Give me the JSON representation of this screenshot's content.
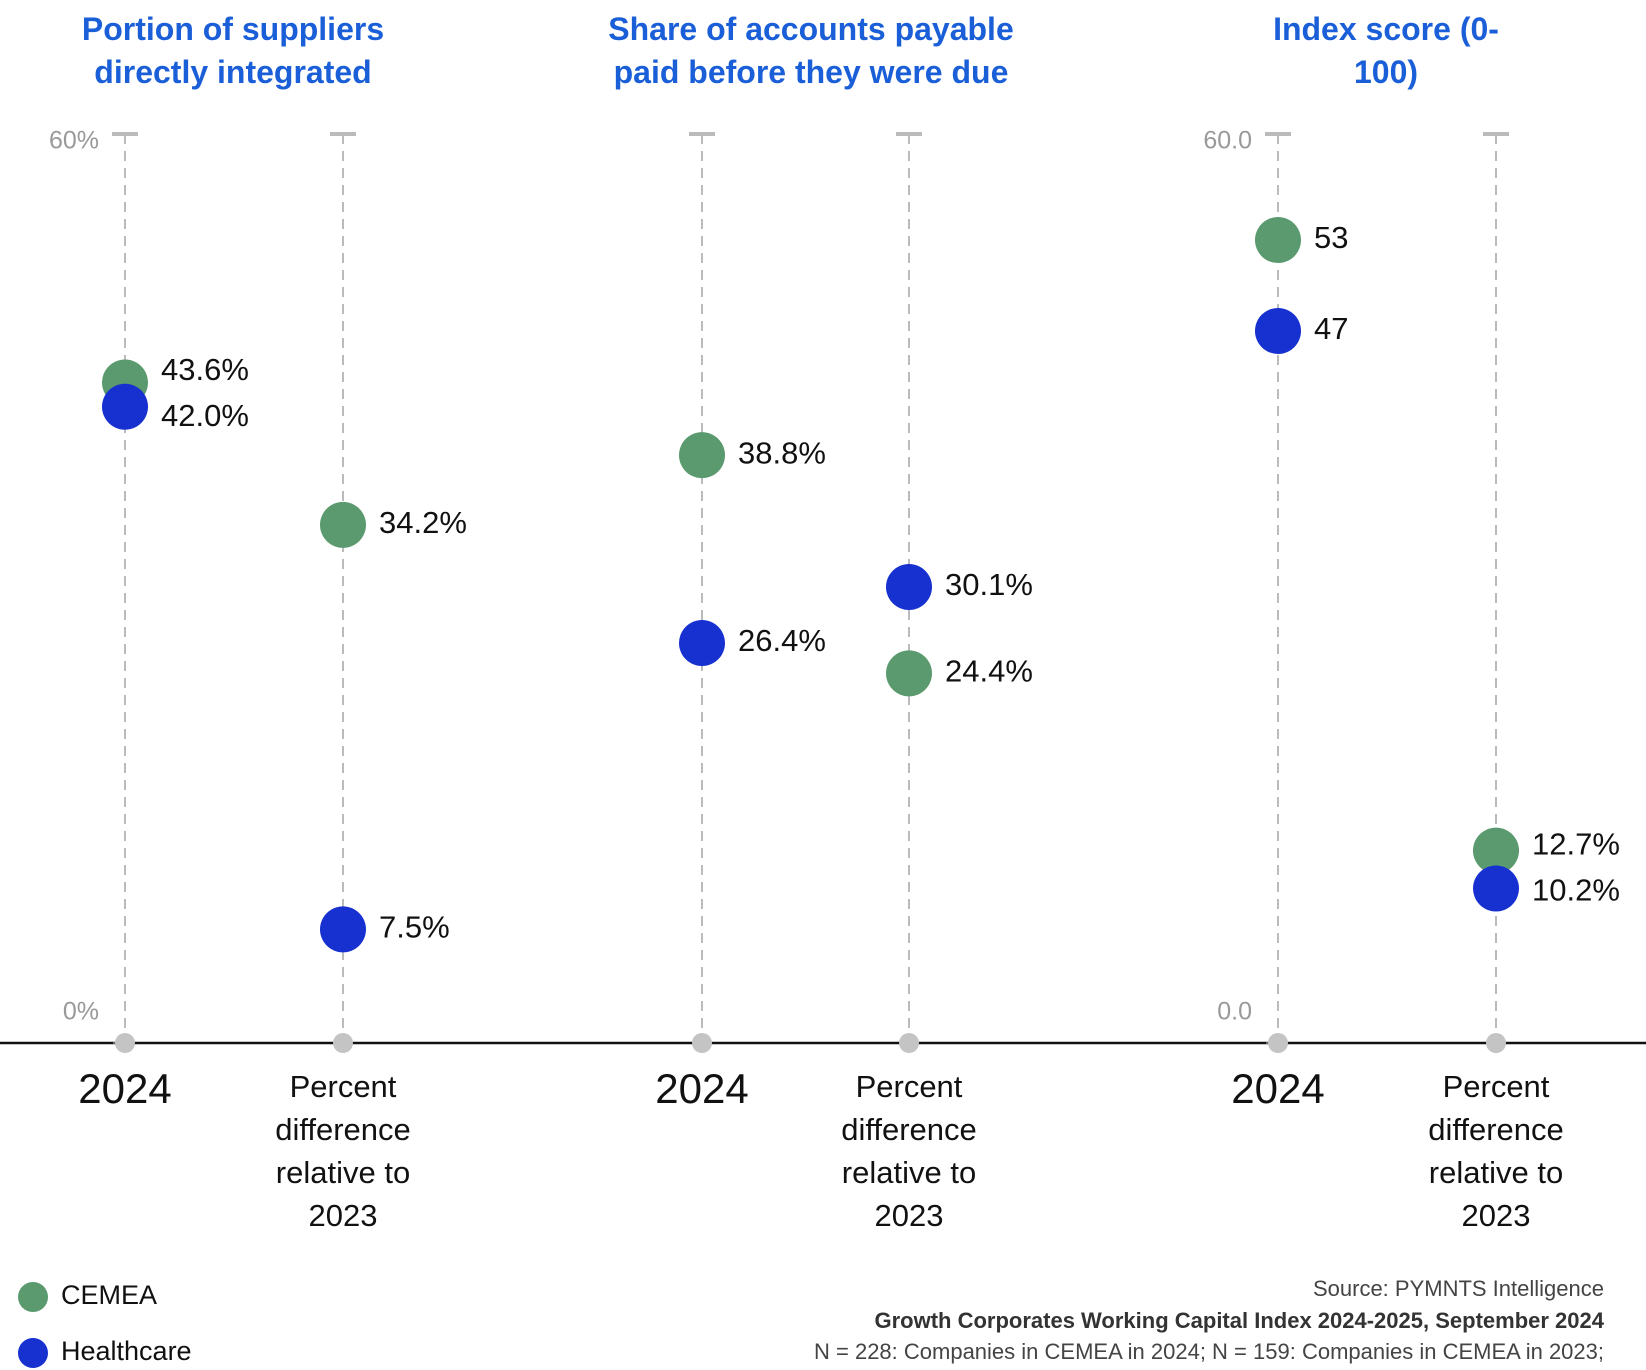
{
  "chart_data": [
    {
      "type": "dot",
      "title": "Portion of suppliers directly integrated",
      "categories": [
        "2024",
        "Percent difference relative to 2023"
      ],
      "series": [
        {
          "name": "CEMEA",
          "color": "#5a9a6e",
          "values": [
            43.6,
            34.2
          ],
          "value_labels": [
            "43.6%",
            "34.2%"
          ]
        },
        {
          "name": "Healthcare",
          "color": "#1730d0",
          "values": [
            42.0,
            7.5
          ],
          "value_labels": [
            "42.0%",
            "7.5%"
          ]
        }
      ],
      "ylim": [
        0,
        60
      ],
      "yticks": [
        {
          "value": 0,
          "label": "0%"
        },
        {
          "value": 60,
          "label": "60%"
        }
      ]
    },
    {
      "type": "dot",
      "title": "Share of accounts payable paid before they were due",
      "categories": [
        "2024",
        "Percent difference relative to 2023"
      ],
      "series": [
        {
          "name": "CEMEA",
          "color": "#5a9a6e",
          "values": [
            38.8,
            24.4
          ],
          "value_labels": [
            "38.8%",
            "24.4%"
          ]
        },
        {
          "name": "Healthcare",
          "color": "#1730d0",
          "values": [
            26.4,
            30.1
          ],
          "value_labels": [
            "26.4%",
            "30.1%"
          ]
        }
      ],
      "ylim": [
        0,
        60
      ],
      "yticks": []
    },
    {
      "type": "dot",
      "title": "Index score (0-100)",
      "categories": [
        "2024",
        "Percent difference relative to 2023"
      ],
      "series": [
        {
          "name": "CEMEA",
          "color": "#5a9a6e",
          "values": [
            53,
            12.7
          ],
          "value_labels": [
            "53",
            "12.7%"
          ]
        },
        {
          "name": "Healthcare",
          "color": "#1730d0",
          "values": [
            47,
            10.2
          ],
          "value_labels": [
            "47",
            "10.2%"
          ]
        }
      ],
      "ylim": [
        0,
        60
      ],
      "yticks": [
        {
          "value": 0,
          "label": "0.0"
        },
        {
          "value": 60,
          "label": "60.0"
        }
      ]
    }
  ],
  "footer": {
    "source": "Source: PYMNTS Intelligence",
    "report": "Growth Corporates Working Capital Index 2024-2025, September 2024",
    "note": "N = 228: Companies in CEMEA in 2024; N = 159: Companies in CEMEA in 2023;"
  }
}
